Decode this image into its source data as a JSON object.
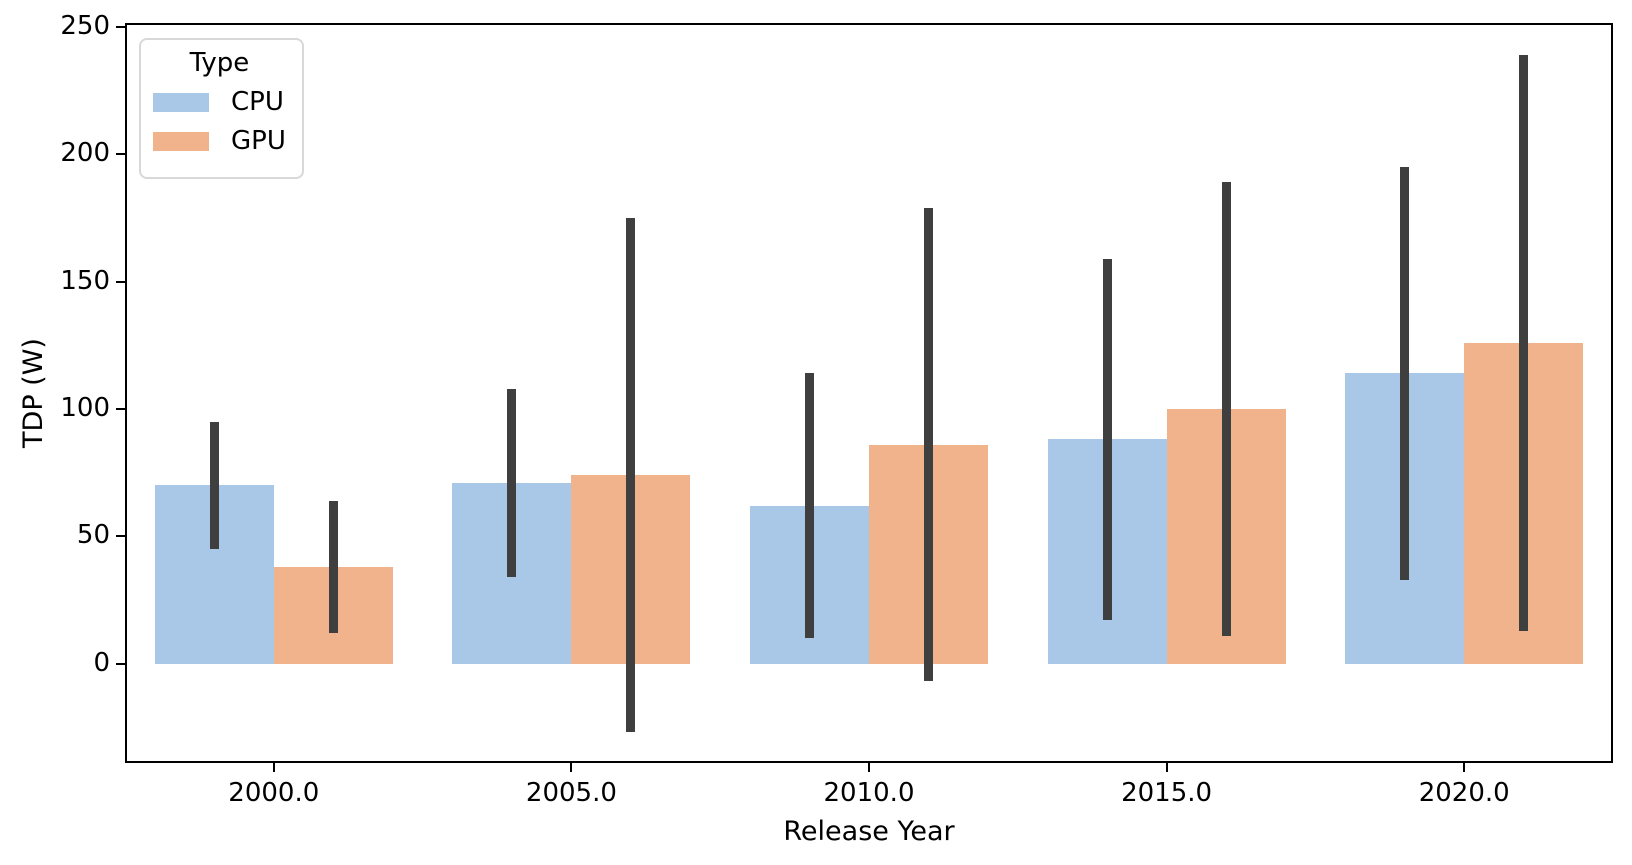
{
  "figure": {
    "background": "#ffffff"
  },
  "legend": {
    "title": "Type",
    "entries": [
      {
        "label": "CPU",
        "color": "#a9c8e8"
      },
      {
        "label": "GPU",
        "color": "#f0b38c"
      }
    ]
  },
  "chart_data": {
    "type": "bar",
    "title": "",
    "xlabel": "Release Year",
    "ylabel": "TDP (W)",
    "categories": [
      "2000.0",
      "2005.0",
      "2010.0",
      "2015.0",
      "2020.0"
    ],
    "series": [
      {
        "name": "CPU",
        "color": "#a9c8e8",
        "values": [
          70,
          71,
          62,
          88,
          114
        ],
        "err_low": [
          45,
          34,
          10,
          17,
          33
        ],
        "err_high": [
          95,
          108,
          114,
          159,
          195
        ]
      },
      {
        "name": "GPU",
        "color": "#f0b38c",
        "values": [
          38,
          74,
          86,
          100,
          126
        ],
        "err_low": [
          12,
          -27,
          -7,
          11,
          13
        ],
        "err_high": [
          64,
          175,
          179,
          189,
          239
        ]
      }
    ],
    "yticks": [
      0,
      50,
      100,
      150,
      200,
      250
    ],
    "ylim": [
      -39,
      251.5
    ],
    "xlim_categories": [
      -0.5,
      4.5
    ],
    "bar_group_fraction": 0.8,
    "error_bar_color": "#3f3f3f",
    "legend_position": "upper left",
    "grid": false
  }
}
